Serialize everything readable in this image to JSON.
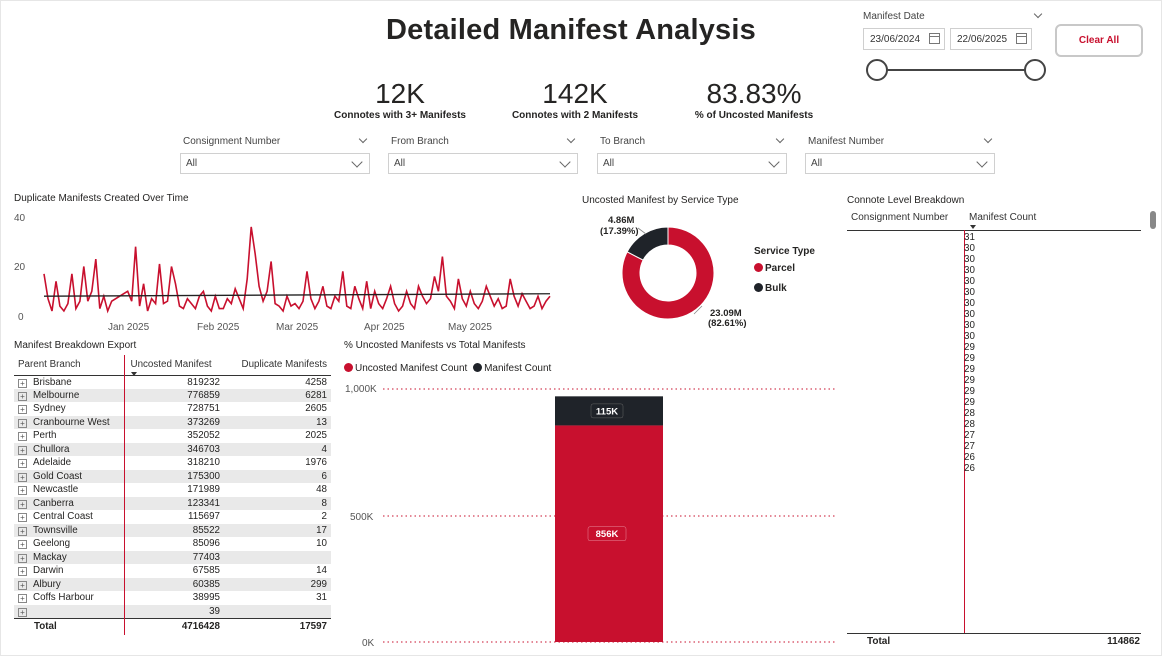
{
  "colors": {
    "accent": "#c8102e",
    "dark": "#1f2329",
    "grid": "#c8102e"
  },
  "title": "Detailed Manifest Analysis",
  "date_filter": {
    "label": "Manifest Date",
    "start": "23/06/2024",
    "end": "22/06/2025"
  },
  "clear_button": "Clear All",
  "kpis": [
    {
      "value": "12K",
      "label": "Connotes with 3+ Manifests"
    },
    {
      "value": "142K",
      "label": "Connotes with 2 Manifests"
    },
    {
      "value": "83.83%",
      "label": "% of Uncosted Manifests"
    }
  ],
  "slicers": [
    {
      "label": "Consignment Number",
      "value": "All"
    },
    {
      "label": "From Branch",
      "value": "All"
    },
    {
      "label": "To Branch",
      "value": "All"
    },
    {
      "label": "Manifest Number",
      "value": "All"
    }
  ],
  "line_chart": {
    "title": "Duplicate Manifests Created Over Time",
    "y_ticks": [
      "40",
      "20",
      "0"
    ],
    "x_ticks": [
      "Jan 2025",
      "Feb 2025",
      "Mar 2025",
      "Apr 2025",
      "May 2025"
    ]
  },
  "donut": {
    "title": "Uncosted Manifest by Service Type",
    "legend_title": "Service Type",
    "slices": [
      {
        "name": "Parcel",
        "value_label": "23.09M",
        "pct_label": "(82.61%)",
        "pct": 82.61,
        "color": "#c8102e"
      },
      {
        "name": "Bulk",
        "value_label": "4.86M",
        "pct_label": "(17.39%)",
        "pct": 17.39,
        "color": "#1f2329"
      }
    ]
  },
  "manifest_table": {
    "title": "Manifest Breakdown Export",
    "headers": [
      "Parent Branch",
      "Uncosted Manifest",
      "Duplicate Manifests"
    ],
    "rows": [
      {
        "branch": "Brisbane",
        "uncosted": "819232",
        "duplicate": "4258"
      },
      {
        "branch": "Melbourne",
        "uncosted": "776859",
        "duplicate": "6281"
      },
      {
        "branch": "Sydney",
        "uncosted": "728751",
        "duplicate": "2605"
      },
      {
        "branch": "Cranbourne West",
        "uncosted": "373269",
        "duplicate": "13"
      },
      {
        "branch": "Perth",
        "uncosted": "352052",
        "duplicate": "2025"
      },
      {
        "branch": "Chullora",
        "uncosted": "346703",
        "duplicate": "4"
      },
      {
        "branch": "Adelaide",
        "uncosted": "318210",
        "duplicate": "1976"
      },
      {
        "branch": "Gold Coast",
        "uncosted": "175300",
        "duplicate": "6"
      },
      {
        "branch": "Newcastle",
        "uncosted": "171989",
        "duplicate": "48"
      },
      {
        "branch": "Canberra",
        "uncosted": "123341",
        "duplicate": "8"
      },
      {
        "branch": "Central Coast",
        "uncosted": "115697",
        "duplicate": "2"
      },
      {
        "branch": "Townsville",
        "uncosted": "85522",
        "duplicate": "17"
      },
      {
        "branch": "Geelong",
        "uncosted": "85096",
        "duplicate": "10"
      },
      {
        "branch": "Mackay",
        "uncosted": "77403",
        "duplicate": ""
      },
      {
        "branch": "Darwin",
        "uncosted": "67585",
        "duplicate": "14"
      },
      {
        "branch": "Albury",
        "uncosted": "60385",
        "duplicate": "299"
      },
      {
        "branch": "Coffs Harbour",
        "uncosted": "38995",
        "duplicate": "31"
      },
      {
        "branch": "",
        "uncosted": "39",
        "duplicate": ""
      }
    ],
    "total": {
      "label": "Total",
      "uncosted": "4716428",
      "duplicate": "17597"
    }
  },
  "bar_chart": {
    "title": "% Uncosted Manifests vs Total Manifests",
    "legend": [
      {
        "name": "Uncosted Manifest Count",
        "color": "#c8102e"
      },
      {
        "name": "Manifest Count",
        "color": "#1f2329"
      }
    ],
    "y_ticks": [
      "1,000K",
      "500K",
      "0K"
    ],
    "segments": [
      {
        "name": "Uncosted Manifest Count",
        "label": "856K"
      },
      {
        "name": "Manifest Count",
        "label": "115K"
      }
    ]
  },
  "chart_data": [
    {
      "type": "line",
      "title": "Duplicate Manifests Created Over Time",
      "xlabel": "",
      "ylabel": "",
      "ylim": [
        0,
        40
      ],
      "x_ticks": [
        "Jan 2025",
        "Feb 2025",
        "Mar 2025",
        "Apr 2025",
        "May 2025"
      ],
      "series": [
        {
          "name": "Duplicate Manifests",
          "values": [
            17,
            7,
            2,
            14,
            4,
            2,
            5,
            17,
            3,
            6,
            20,
            6,
            10,
            23,
            3,
            8,
            2,
            6,
            7,
            8,
            9,
            10,
            6,
            28,
            4,
            13,
            2,
            7,
            5,
            21,
            5,
            6,
            20,
            13,
            4,
            3,
            7,
            5,
            3,
            8,
            10,
            4,
            2,
            8,
            3,
            3,
            7,
            5,
            11,
            7,
            3,
            15,
            36,
            25,
            12,
            6,
            10,
            22,
            5,
            4,
            2,
            8,
            4,
            5,
            3,
            6,
            18,
            7,
            3,
            6,
            12,
            4,
            3,
            8,
            6,
            18,
            4,
            3,
            12,
            7,
            3,
            14,
            3,
            10,
            5,
            3,
            7,
            12,
            5,
            2,
            4,
            10,
            5,
            3,
            12,
            8,
            5,
            7,
            16,
            10,
            24,
            8,
            6,
            3,
            15,
            7,
            4,
            10,
            5,
            3,
            6,
            12,
            8,
            4,
            7,
            3,
            4,
            15,
            8,
            4,
            9,
            6,
            3,
            4,
            8,
            3,
            6,
            8
          ]
        },
        {
          "name": "Trend",
          "values": [
            8,
            9
          ]
        }
      ]
    },
    {
      "type": "pie",
      "title": "Uncosted Manifest by Service Type",
      "categories": [
        "Parcel",
        "Bulk"
      ],
      "values": [
        23.09,
        4.86
      ],
      "unit": "M"
    },
    {
      "type": "bar",
      "title": "% Uncosted Manifests vs Total Manifests",
      "categories": [
        ""
      ],
      "series": [
        {
          "name": "Uncosted Manifest Count",
          "values": [
            856
          ]
        },
        {
          "name": "Manifest Count",
          "values": [
            115
          ]
        }
      ],
      "ylim": [
        0,
        1000
      ],
      "unit": "K"
    }
  ],
  "connote_table": {
    "title": "Connote Level Breakdown",
    "headers": [
      "Consignment Number",
      "Manifest Count"
    ],
    "rows": [
      {
        "value": "31",
        "bold": true
      },
      {
        "value": "30",
        "bold": true
      },
      {
        "value": "30",
        "bold": true
      },
      {
        "value": "30",
        "bold": false
      },
      {
        "value": "",
        "bold": false
      },
      {
        "value": "30",
        "bold": true
      },
      {
        "value": "30",
        "bold": false
      },
      {
        "value": "",
        "bold": false
      },
      {
        "value": "30",
        "bold": true
      },
      {
        "value": "30",
        "bold": false
      },
      {
        "value": "",
        "bold": false
      },
      {
        "value": "30",
        "bold": true
      },
      {
        "value": "30",
        "bold": false
      },
      {
        "value": "",
        "bold": false
      },
      {
        "value": "",
        "bold": false
      },
      {
        "value": "29",
        "bold": true
      },
      {
        "value": "29",
        "bold": false
      },
      {
        "value": "",
        "bold": false
      },
      {
        "value": "29",
        "bold": true
      },
      {
        "value": "29",
        "bold": false
      },
      {
        "value": "",
        "bold": false
      },
      {
        "value": "29",
        "bold": true
      },
      {
        "value": "29",
        "bold": false
      },
      {
        "value": "",
        "bold": false
      },
      {
        "value": "28",
        "bold": true
      },
      {
        "value": "28",
        "bold": false
      },
      {
        "value": "",
        "bold": false
      },
      {
        "value": "27",
        "bold": true
      },
      {
        "value": "27",
        "bold": false
      },
      {
        "value": "26",
        "bold": true
      },
      {
        "value": "26",
        "bold": false
      }
    ],
    "total": {
      "label": "Total",
      "value": "114862"
    }
  }
}
